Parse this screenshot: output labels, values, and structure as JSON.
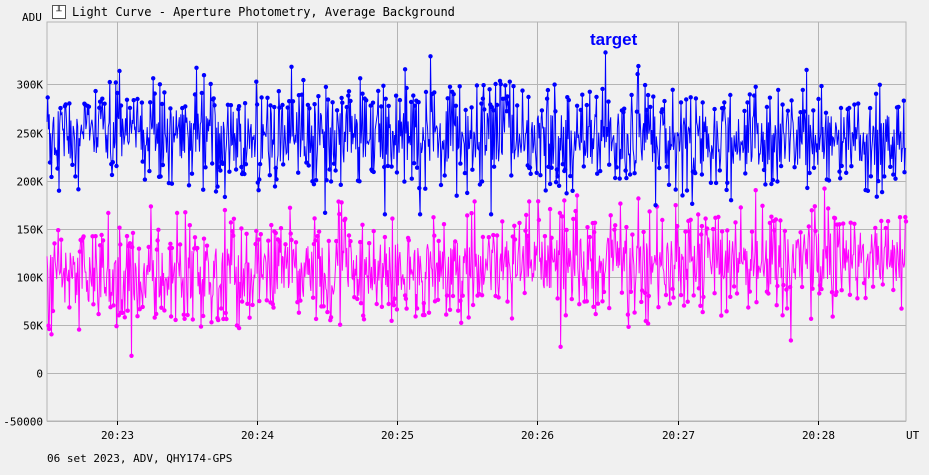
{
  "window": {
    "title": "Light Curve - Aperture Photometry, Average Background",
    "icon": "light-curve-icon"
  },
  "chart_data": {
    "type": "line",
    "ylabel": "ADU",
    "xlabel": "UT",
    "yticks": [
      {
        "value": 300000,
        "label": "300K"
      },
      {
        "value": 250000,
        "label": "250K"
      },
      {
        "value": 200000,
        "label": "200K"
      },
      {
        "value": 150000,
        "label": "150K"
      },
      {
        "value": 100000,
        "label": "100K"
      },
      {
        "value": 50000,
        "label": "50K"
      },
      {
        "value": 0,
        "label": "0"
      },
      {
        "value": -50000,
        "label": "-50000"
      }
    ],
    "xticks": [
      {
        "value": 1,
        "label": "20:23"
      },
      {
        "value": 2,
        "label": "20:24"
      },
      {
        "value": 3,
        "label": "20:25"
      },
      {
        "value": 4,
        "label": "20:26"
      },
      {
        "value": 5,
        "label": "20:27"
      },
      {
        "value": 6,
        "label": "20:28"
      }
    ],
    "xlim": [
      0.5,
      6.63
    ],
    "ylim": [
      -50000,
      365000
    ],
    "grid": true,
    "footer": "06 set 2023, ADV, QHY174-GPS",
    "legend_position": "top-center",
    "series": [
      {
        "name": "target",
        "color": "#0000ff",
        "mean_start": 248000,
        "mean_end": 242000,
        "spread": 27000,
        "min": 165000,
        "max": 345000,
        "points": 1150
      },
      {
        "name": "",
        "color": "#ff00ff",
        "mean_start": 98000,
        "mean_end": 122000,
        "spread": 27000,
        "min": -5000,
        "max": 205000,
        "points": 1150
      }
    ]
  },
  "colors": {
    "background": "#f0f0f0",
    "grid": "#b4b4b4",
    "axis": "#000000"
  }
}
